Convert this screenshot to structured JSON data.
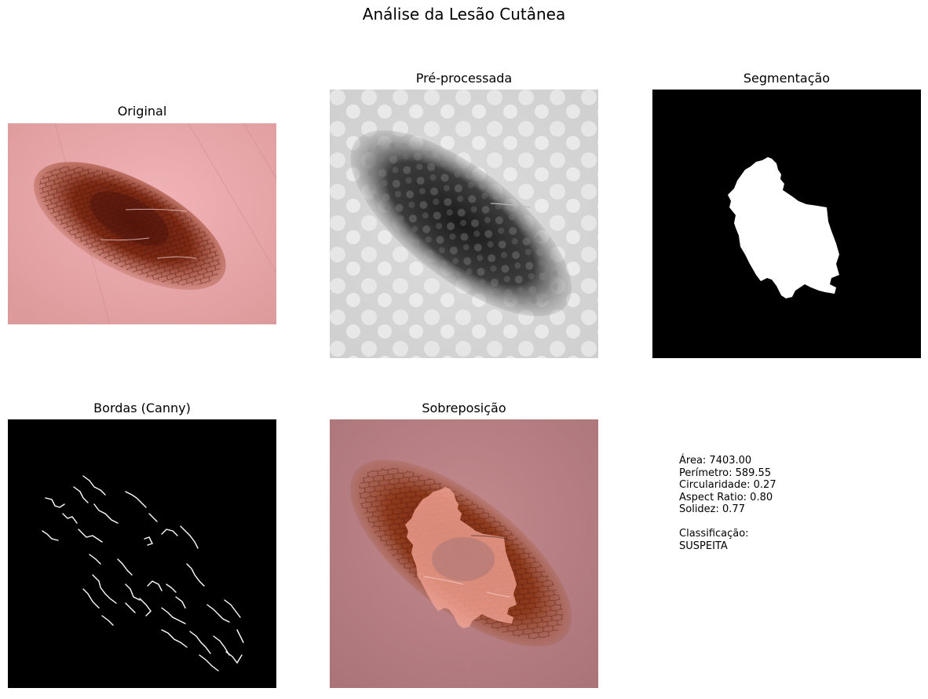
{
  "figure": {
    "title": "Análise da Lesão Cutânea"
  },
  "panels": {
    "original": {
      "title": "Original"
    },
    "preprocessed": {
      "title": "Pré-processada"
    },
    "segmentation": {
      "title": "Segmentação"
    },
    "edges": {
      "title": "Bordas (Canny)"
    },
    "overlay": {
      "title": "Sobreposição"
    }
  },
  "metrics": {
    "area": "Área: 7403.00",
    "perimeter": "Perímetro: 589.55",
    "circularity": "Circularidade: 0.27",
    "aspect_ratio": "Aspect Ratio: 0.80",
    "solidity": "Solidez: 0.77",
    "classification_label": "Classificação:",
    "classification_value": "SUSPEITA"
  },
  "colors": {
    "skin": "#e8a4a8",
    "lesion": "#8a3018",
    "lesion_dark": "#5a1a0c",
    "mask": "#ffffff",
    "background": "#000000",
    "overlay_tint": "#f09a8a"
  }
}
